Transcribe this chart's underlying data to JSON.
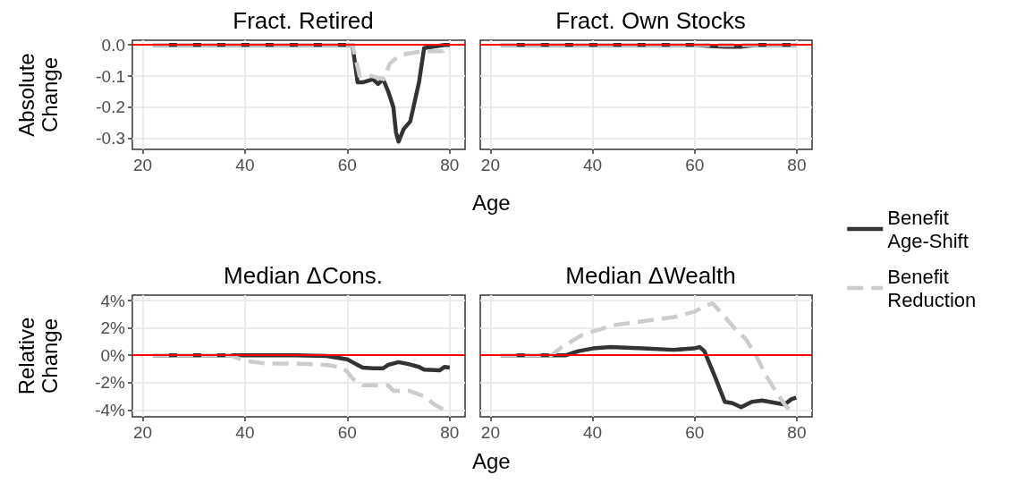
{
  "chart_data": [
    {
      "type": "line",
      "title": "Fract. Retired",
      "xlabel": "Age",
      "ylabel": "Absolute\nChange",
      "legend": "right",
      "grid": true,
      "xlim": [
        18,
        83
      ],
      "xticks": [
        20,
        40,
        60,
        80
      ],
      "ylim": [
        -0.335,
        0.015
      ],
      "yticks": [
        {
          "value": 0,
          "label": "0.0"
        },
        {
          "value": -0.1,
          "label": "-0.1"
        },
        {
          "value": -0.2,
          "label": "-0.2"
        },
        {
          "value": -0.3,
          "label": "-0.3"
        }
      ],
      "ref_lines": [
        {
          "axis": "y",
          "value": 0,
          "color": "#ff0000"
        }
      ],
      "series": [
        {
          "name": "Benefit\nAge-Shift",
          "color": "#333333",
          "line_style": "solid",
          "x": [
            22,
            61,
            62,
            63,
            65,
            66,
            67,
            68,
            69,
            69.5,
            70,
            71,
            72.3,
            74,
            75,
            79,
            80
          ],
          "values": [
            0,
            0,
            -0.12,
            -0.12,
            -0.11,
            -0.125,
            -0.11,
            -0.15,
            -0.2,
            -0.28,
            -0.31,
            -0.27,
            -0.245,
            -0.12,
            -0.01,
            0,
            0
          ]
        },
        {
          "name": "Benefit\nReduction",
          "color": "#cccccc",
          "line_style": "dashed",
          "x": [
            22,
            61,
            62.4,
            64.8,
            67.1,
            68.3,
            69.7,
            71,
            74.7,
            78.7,
            80
          ],
          "values": [
            0,
            0,
            -0.1,
            -0.1,
            -0.11,
            -0.06,
            -0.04,
            -0.03,
            -0.02,
            -0.02,
            0
          ]
        }
      ]
    },
    {
      "type": "line",
      "title": "Fract. Own Stocks",
      "grid": true,
      "tick_labels": "x",
      "xlim": [
        18,
        83
      ],
      "xticks": [
        20,
        40,
        60,
        80
      ],
      "ylim": [
        -0.335,
        0.015
      ],
      "yticks": [
        {
          "value": 0,
          "label": null
        },
        {
          "value": -0.1,
          "label": null
        },
        {
          "value": -0.2,
          "label": null
        },
        {
          "value": -0.3,
          "label": null
        }
      ],
      "ref_lines": [
        {
          "axis": "y",
          "value": 0,
          "color": "#ff0000"
        }
      ],
      "series": [
        {
          "color": "#333333",
          "line_style": "solid",
          "x": [
            22,
            60,
            63,
            66,
            69,
            72,
            75,
            80
          ],
          "values": [
            0,
            0,
            -0.004,
            -0.006,
            -0.006,
            0,
            0,
            0
          ]
        },
        {
          "color": "#cccccc",
          "line_style": "dashed",
          "x": [
            22,
            60,
            65,
            70,
            75,
            80
          ],
          "values": [
            0,
            0,
            0,
            0,
            0,
            0
          ]
        }
      ]
    },
    {
      "type": "line",
      "title": "Median ΔCons.",
      "xlabel": "Age",
      "ylabel": "Relative\nChange",
      "grid": true,
      "xlim": [
        18,
        83
      ],
      "xticks": [
        20,
        40,
        60,
        80
      ],
      "ylim": [
        -4.5,
        4.4
      ],
      "yticks": [
        {
          "value": 4,
          "label": "4%"
        },
        {
          "value": 2,
          "label": "2%"
        },
        {
          "value": 0,
          "label": "0%"
        },
        {
          "value": -2,
          "label": "-2%"
        },
        {
          "value": -4,
          "label": "-4%"
        }
      ],
      "ref_lines": [
        {
          "axis": "y",
          "value": 0,
          "color": "#ff0000"
        }
      ],
      "series": [
        {
          "color": "#333333",
          "line_style": "solid",
          "x": [
            22,
            40,
            50,
            56,
            60,
            61,
            62,
            63,
            65,
            67,
            68,
            70,
            72,
            74,
            75,
            78,
            79,
            80
          ],
          "values": [
            0,
            0,
            0,
            -0.05,
            -0.3,
            -0.5,
            -0.7,
            -0.9,
            -0.95,
            -0.95,
            -0.7,
            -0.5,
            -0.65,
            -0.85,
            -1.05,
            -1.1,
            -0.85,
            -0.9
          ]
        },
        {
          "color": "#cccccc",
          "line_style": "dashed",
          "x": [
            22,
            37,
            40,
            44,
            50,
            56,
            59,
            60,
            61,
            63,
            66,
            68,
            69,
            72,
            75,
            77,
            79
          ],
          "values": [
            0,
            0,
            -0.4,
            -0.6,
            -0.6,
            -0.7,
            -0.9,
            -1.2,
            -1.7,
            -2.2,
            -2.2,
            -2.2,
            -2.6,
            -2.6,
            -3.0,
            -3.6,
            -4.0
          ]
        }
      ]
    },
    {
      "type": "line",
      "title": "Median ΔWealth",
      "grid": true,
      "tick_labels": "x",
      "xlim": [
        18,
        83
      ],
      "xticks": [
        20,
        40,
        60,
        80
      ],
      "ylim": [
        -4.5,
        4.4
      ],
      "yticks": [
        {
          "value": 4,
          "label": null
        },
        {
          "value": 2,
          "label": null
        },
        {
          "value": 0,
          "label": null
        },
        {
          "value": -2,
          "label": null
        },
        {
          "value": -4,
          "label": null
        }
      ],
      "ref_lines": [
        {
          "axis": "y",
          "value": 0,
          "color": "#ff0000"
        }
      ],
      "series": [
        {
          "color": "#333333",
          "line_style": "solid",
          "x": [
            22,
            34.8,
            37.2,
            40,
            43.5,
            50,
            55.8,
            59.8,
            61,
            61.9,
            63.9,
            65.9,
            67.4,
            69.1,
            71.2,
            73.2,
            77.6,
            79,
            79.9
          ],
          "values": [
            0,
            0,
            0.3,
            0.5,
            0.6,
            0.5,
            0.4,
            0.5,
            0.6,
            0.3,
            -1.5,
            -3.4,
            -3.5,
            -3.8,
            -3.4,
            -3.3,
            -3.6,
            -3.2,
            -3.1
          ]
        },
        {
          "color": "#cccccc",
          "line_style": "dashed",
          "x": [
            22,
            31.9,
            34,
            38,
            44,
            50,
            56,
            60,
            62,
            63.5,
            65,
            68,
            70,
            72,
            74,
            76,
            78,
            80
          ],
          "values": [
            0,
            0,
            0.6,
            1.5,
            2.2,
            2.5,
            2.8,
            3.2,
            3.6,
            3.8,
            3.2,
            1.9,
            1.2,
            0,
            -1.5,
            -2.7,
            -3.8,
            -4.1
          ]
        }
      ]
    }
  ]
}
